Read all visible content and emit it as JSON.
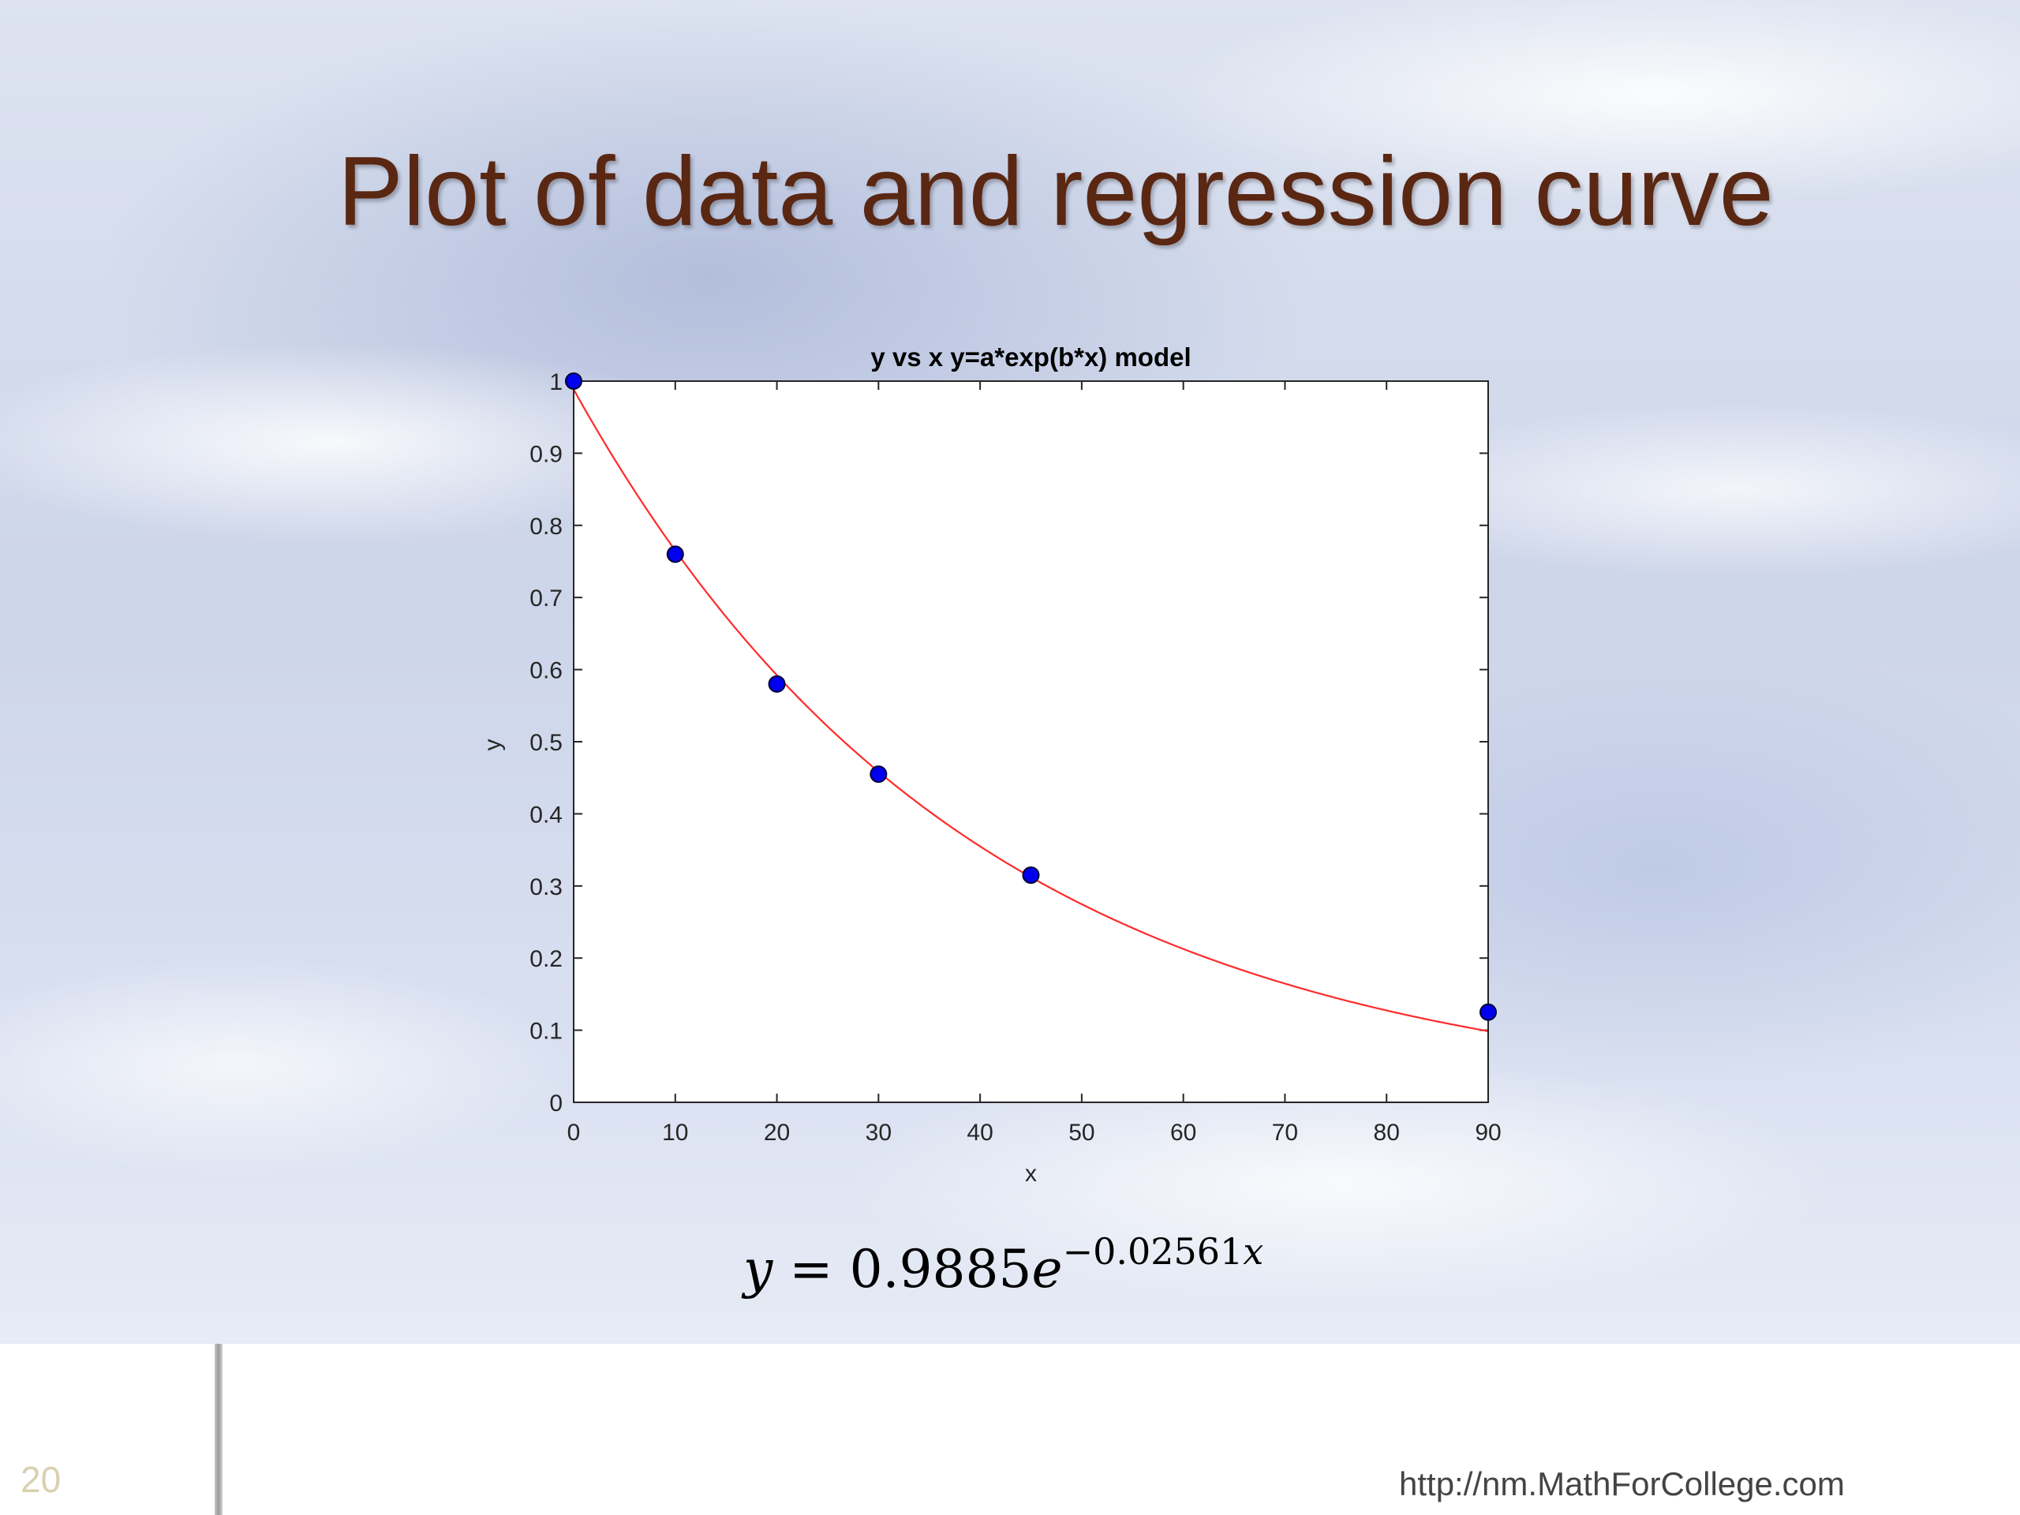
{
  "slide": {
    "title": "Plot of data and regression curve",
    "slide_number": "20",
    "footer_url": "http://nm.MathForCollege.com",
    "equation": {
      "lhs": "y",
      "equals": " = ",
      "coefficient": "0.9885",
      "base": "e",
      "exponent": "−0.02561",
      "exponent_var": "x"
    }
  },
  "colors": {
    "title": "#5a2713",
    "curve": "#ff2a2a",
    "marker_fill": "#0000ee",
    "marker_edge": "#000033"
  },
  "chart_data": {
    "type": "scatter",
    "title": "y vs x y=a*exp(b*x) model",
    "xlabel": "x",
    "ylabel": "y",
    "xlim": [
      0,
      90
    ],
    "ylim": [
      0,
      1
    ],
    "xticks": [
      0,
      10,
      20,
      30,
      40,
      50,
      60,
      70,
      80,
      90
    ],
    "yticks": [
      0,
      0.1,
      0.2,
      0.3,
      0.4,
      0.5,
      0.6,
      0.7,
      0.8,
      0.9,
      1
    ],
    "ytick_labels": [
      "0",
      "0.1",
      "0.2",
      "0.3",
      "0.4",
      "0.5",
      "0.6",
      "0.7",
      "0.8",
      "0.9",
      "1"
    ],
    "grid": false,
    "series": [
      {
        "kind": "points",
        "x": [
          0,
          10,
          20,
          30,
          45,
          90
        ],
        "y": [
          1.0,
          0.76,
          0.58,
          0.455,
          0.315,
          0.125
        ]
      },
      {
        "kind": "curve",
        "model": "y = a*exp(b*x)",
        "a": 0.9885,
        "b": -0.02561,
        "x_range": [
          0,
          90
        ]
      }
    ]
  }
}
